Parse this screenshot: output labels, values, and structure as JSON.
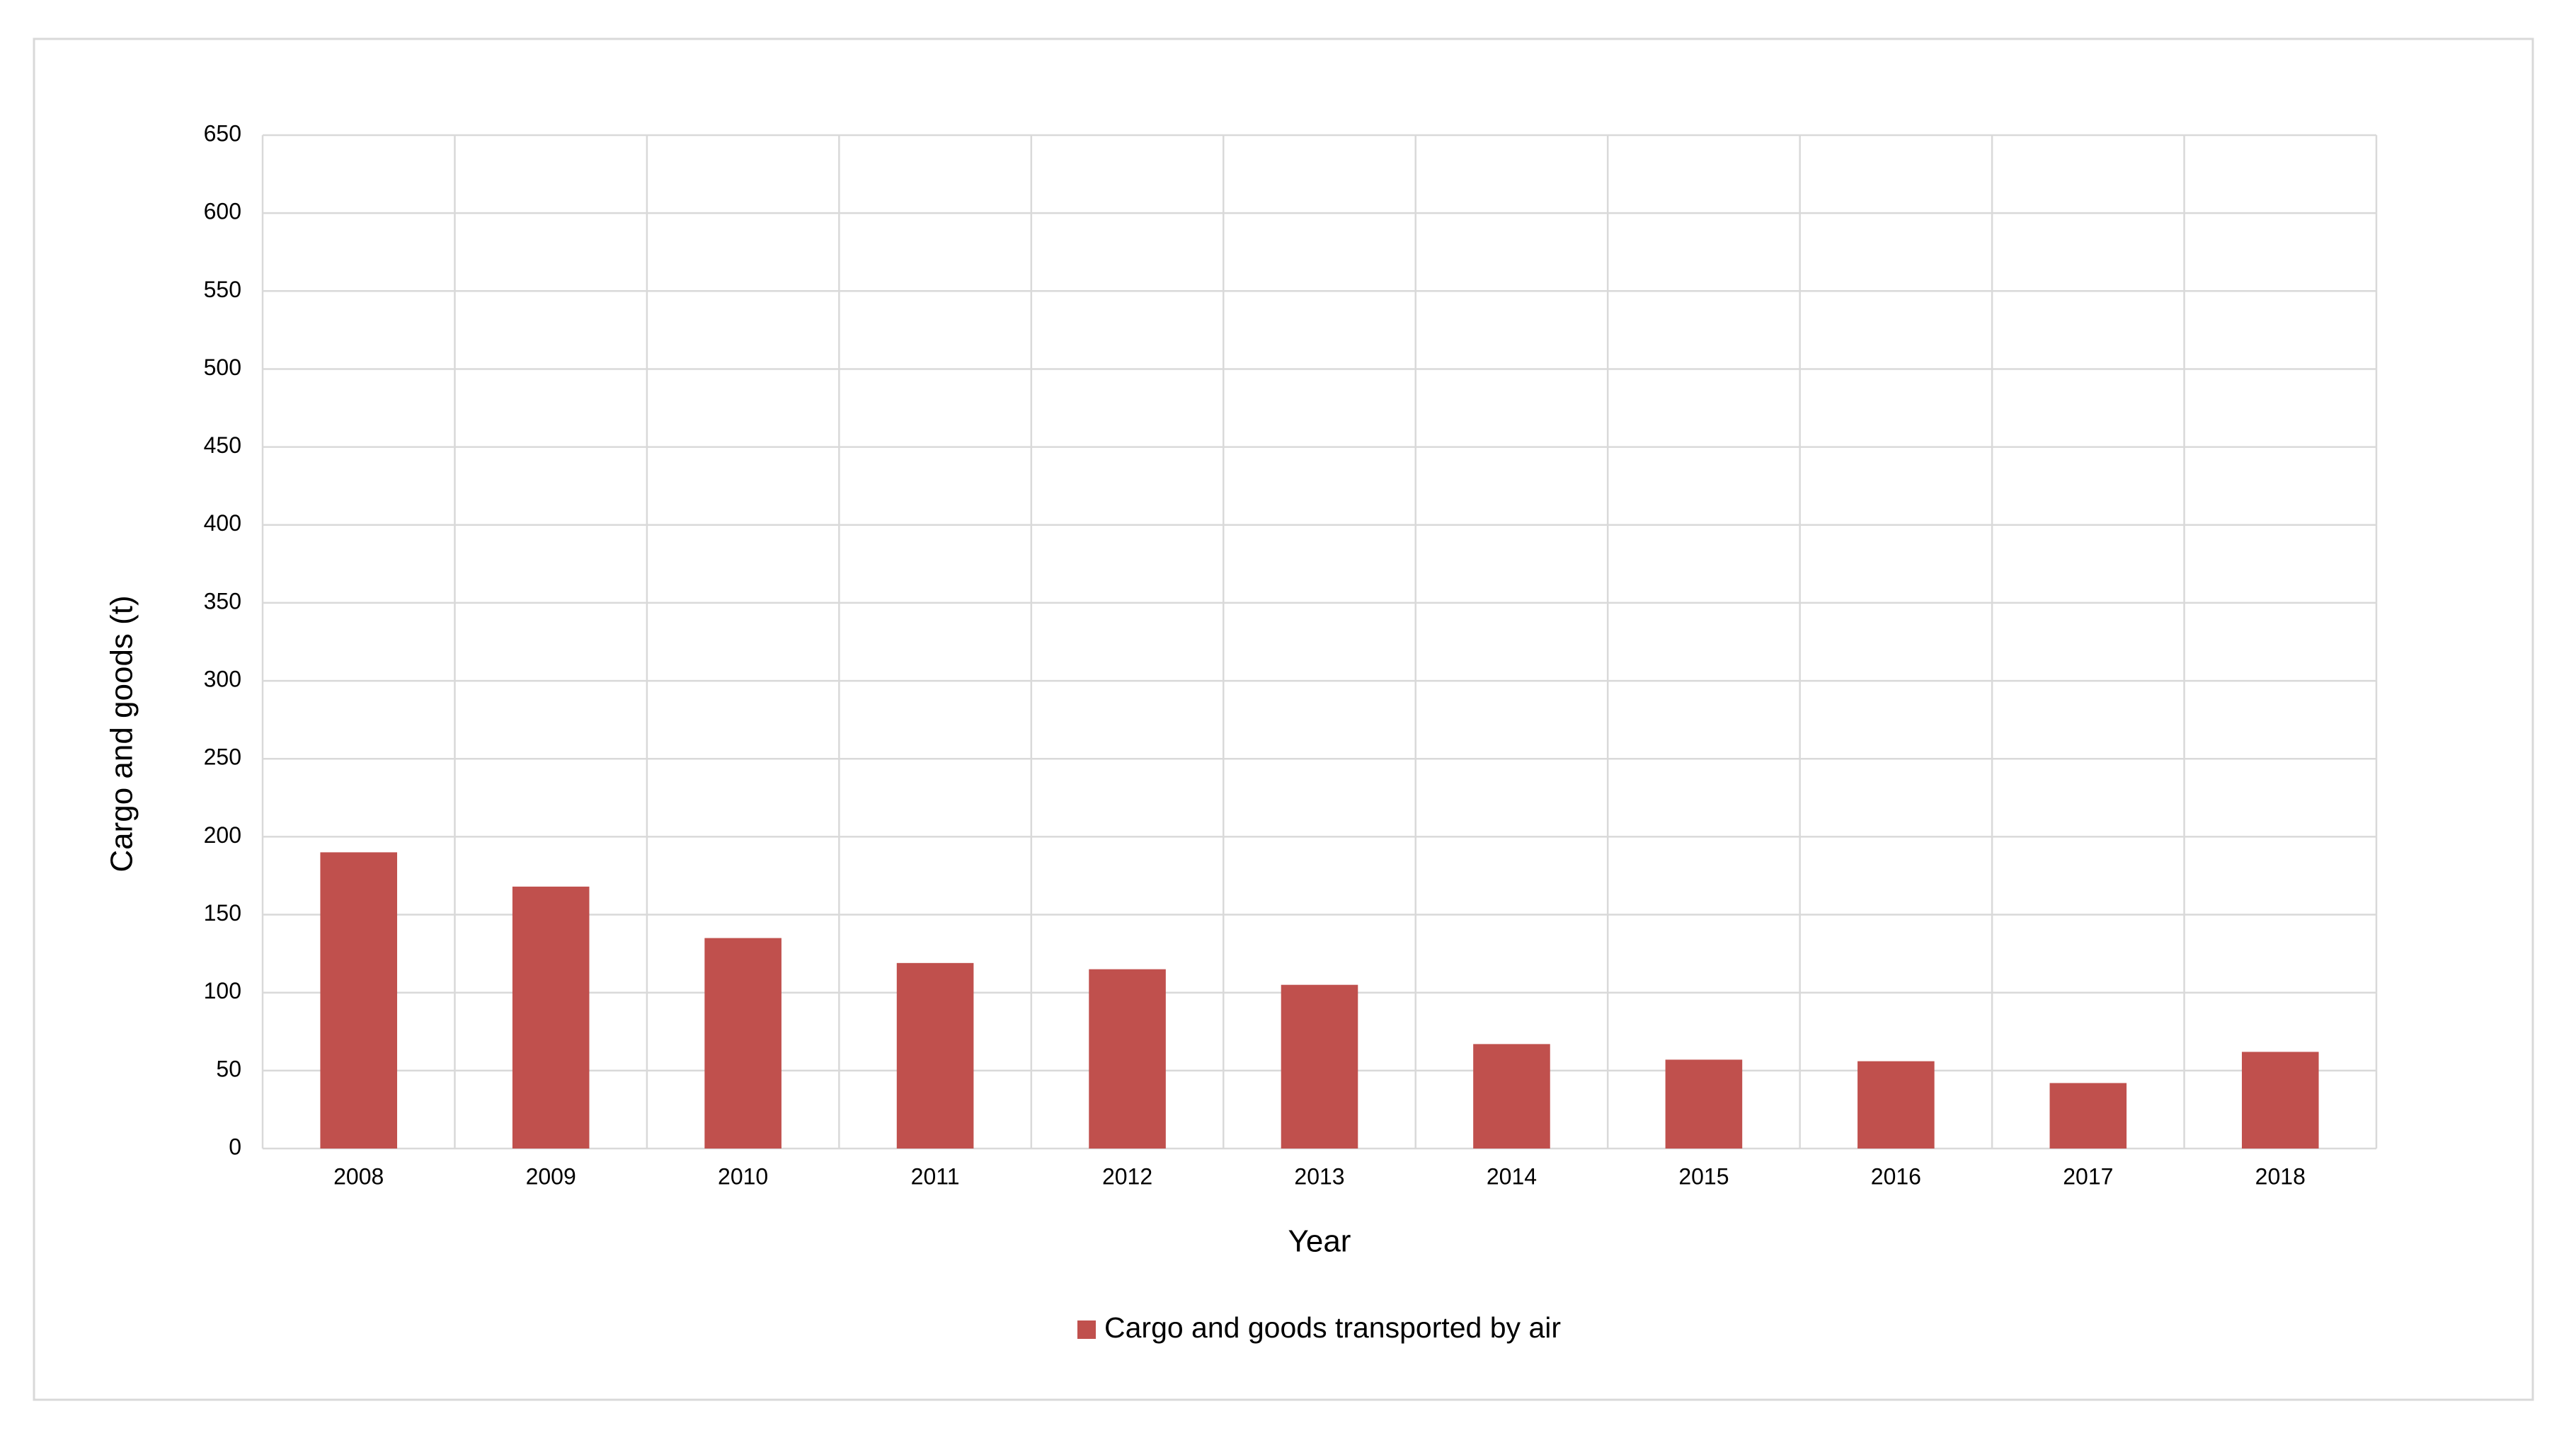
{
  "chart_data": {
    "type": "bar",
    "x_label": "Year",
    "y_label": "Cargo and goods (t)",
    "categories": [
      "2008",
      "2009",
      "2010",
      "2011",
      "2012",
      "2013",
      "2014",
      "2015",
      "2016",
      "2017",
      "2018"
    ],
    "series": [
      {
        "name": "Cargo and goods transported by air",
        "color": "#c0504d",
        "values": [
          190,
          168,
          135,
          119,
          115,
          105,
          67,
          57,
          56,
          42,
          62
        ]
      }
    ],
    "ylim": [
      0,
      650
    ],
    "yticks": [
      0,
      50,
      100,
      150,
      200,
      250,
      300,
      350,
      400,
      450,
      500,
      550,
      600,
      650
    ],
    "grid": true,
    "legend": "bottom"
  }
}
